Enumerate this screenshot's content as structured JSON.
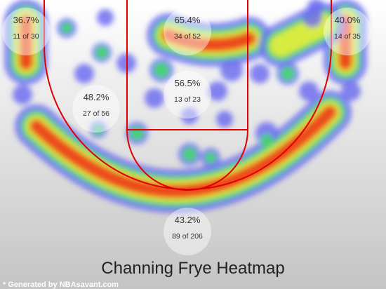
{
  "zones": [
    {
      "pct": "36.7%",
      "made_of": "11 of 30"
    },
    {
      "pct": "65.4%",
      "made_of": "34 of 52"
    },
    {
      "pct": "40.0%",
      "made_of": "14 of 35"
    },
    {
      "pct": "48.2%",
      "made_of": "27 of 56"
    },
    {
      "pct": "56.5%",
      "made_of": "13 of 23"
    },
    {
      "pct": "43.2%",
      "made_of": "89 of 206"
    }
  ],
  "title": "Channing Frye Heatmap",
  "footer": "* Generated by NBAsavant.com"
}
